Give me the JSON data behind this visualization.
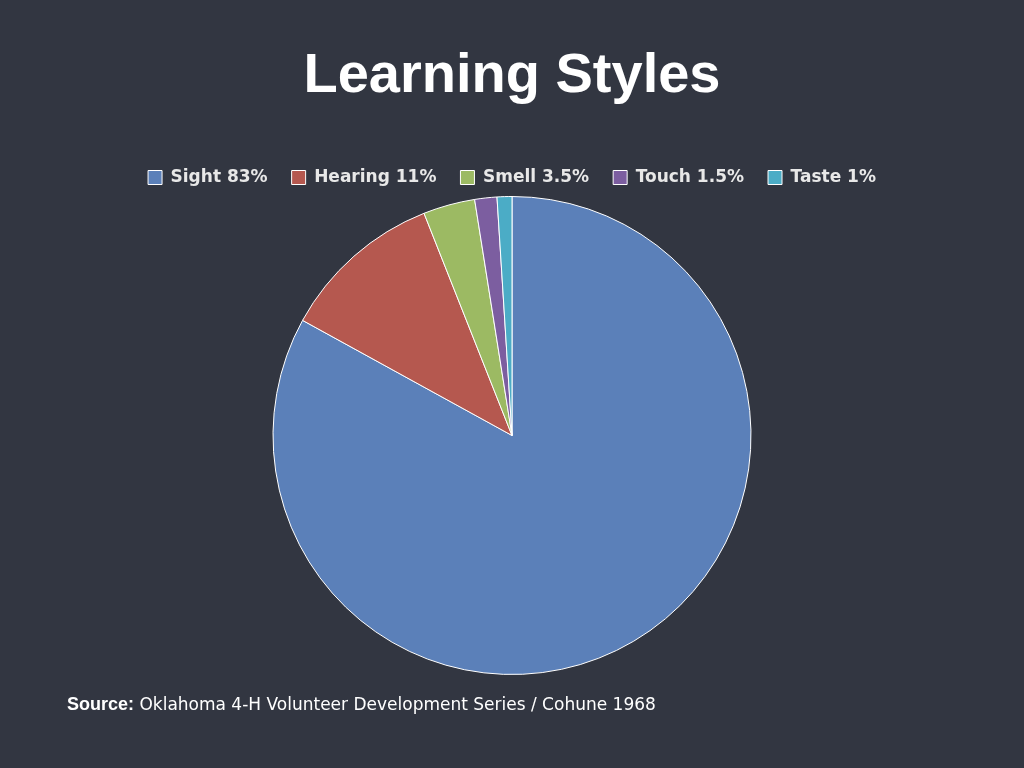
{
  "chart_data": {
    "type": "pie",
    "title": "Learning Styles",
    "categories": [
      "Sight 83%",
      "Hearing 11%",
      "Smell 3.5%",
      "Touch 1.5%",
      "Taste 1%"
    ],
    "values": [
      83,
      11,
      3.5,
      1.5,
      1
    ],
    "colors": [
      "#5b80b9",
      "#b5584f",
      "#9cba63",
      "#7c5ea0",
      "#4bacc6"
    ],
    "legend": "top",
    "annotations": [
      "Source: Oklahoma 4-H Volunteer Development Series / Cohune 1968"
    ]
  }
}
